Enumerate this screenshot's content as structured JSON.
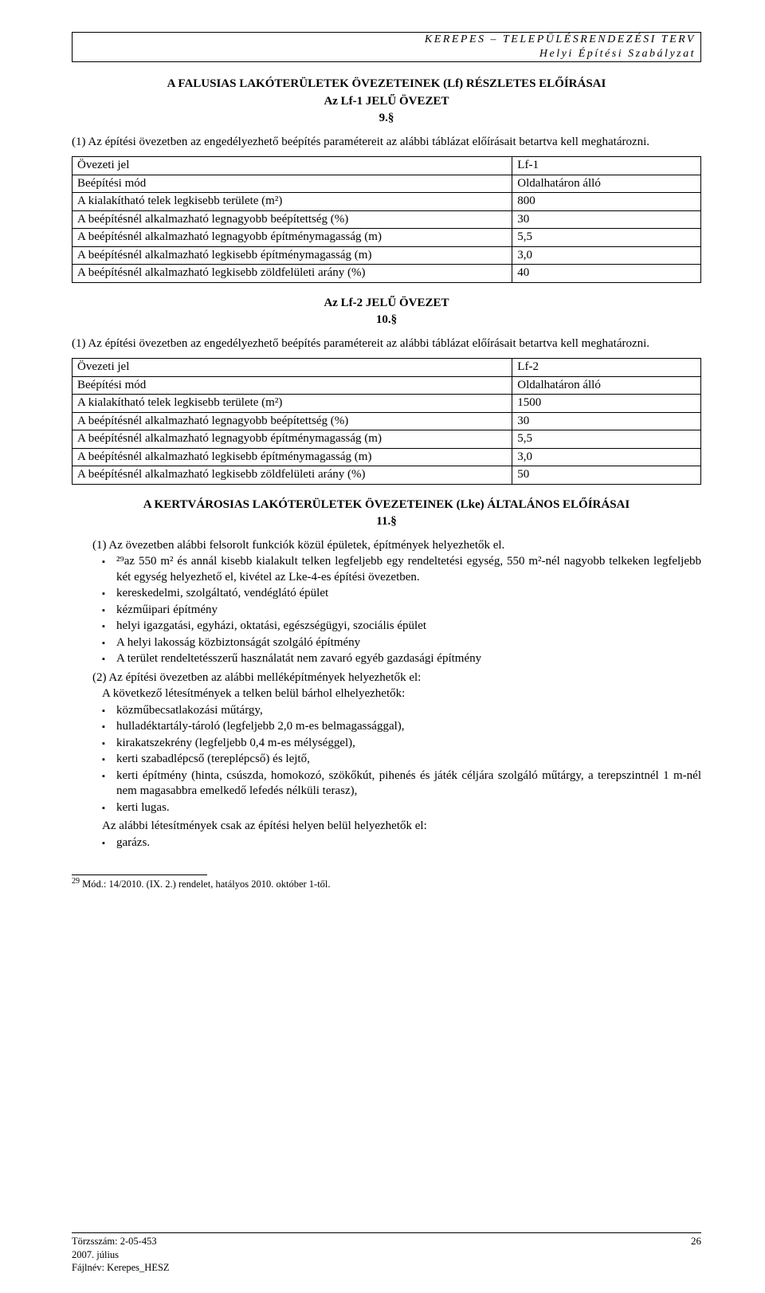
{
  "header": {
    "line1": "KEREPES – TELEPÜLÉSRENDEZÉSI TERV",
    "line2": "Helyi Építési Szabályzat"
  },
  "section9": {
    "title": "A FALUSIAS LAKÓTERÜLETEK ÖVEZETEINEK (Lf) RÉSZLETES ELŐÍRÁSAI",
    "subtitle": "Az Lf-1 JELŰ ÖVEZET",
    "num": "9.§",
    "para1": "(1) Az építési övezetben az engedélyezhető beépítés paramétereit az alábbi táblázat előírásait betartva kell meghatározni.",
    "table": {
      "rows": [
        [
          "Övezeti jel",
          "Lf-1"
        ],
        [
          "Beépítési mód",
          "Oldalhatáron álló"
        ],
        [
          "A kialakítható telek legkisebb területe (m²)",
          "800"
        ],
        [
          "A beépítésnél alkalmazható legnagyobb beépítettség (%)",
          "30"
        ],
        [
          "A beépítésnél alkalmazható legnagyobb építménymagasság (m)",
          "5,5"
        ],
        [
          "A beépítésnél alkalmazható legkisebb építménymagasság (m)",
          "3,0"
        ],
        [
          "A beépítésnél alkalmazható legkisebb zöldfelületi arány (%)",
          "40"
        ]
      ]
    }
  },
  "section10": {
    "subtitle": "Az Lf-2 JELŰ ÖVEZET",
    "num": "10.§",
    "para1": "(1) Az építési övezetben az engedélyezhető beépítés paramétereit az alábbi táblázat előírásait betartva kell meghatározni.",
    "table": {
      "rows": [
        [
          "Övezeti jel",
          "Lf-2"
        ],
        [
          "Beépítési mód",
          "Oldalhatáron álló"
        ],
        [
          "A kialakítható telek legkisebb területe (m²)",
          "1500"
        ],
        [
          "A beépítésnél alkalmazható legnagyobb beépítettség (%)",
          "30"
        ],
        [
          "A beépítésnél alkalmazható legnagyobb építménymagasság (m)",
          "5,5"
        ],
        [
          "A beépítésnél alkalmazható legkisebb építménymagasság (m)",
          "3,0"
        ],
        [
          "A beépítésnél alkalmazható legkisebb zöldfelületi arány (%)",
          "50"
        ]
      ]
    }
  },
  "section11": {
    "title": "A KERTVÁROSIAS LAKÓTERÜLETEK ÖVEZETEINEK (Lke) ÁLTALÁNOS ELŐÍRÁSAI",
    "num": "11.§",
    "p1_lead": "(1)  Az övezetben alábbi felsorolt funkciók közül épületek, építmények helyezhetők el.",
    "p1_items": [
      "²⁹az 550 m² és annál kisebb kialakult telken legfeljebb egy rendeltetési egység, 550 m²-nél nagyobb telkeken legfeljebb két egység helyezhető el, kivétel az Lke-4-es építési övezetben.",
      "kereskedelmi, szolgáltató, vendéglátó épület",
      "kézműipari építmény",
      "helyi igazgatási, egyházi, oktatási, egészségügyi, szociális épület",
      "A helyi lakosság közbiztonságát szolgáló építmény",
      "A terület rendeltetésszerű használatát nem zavaró egyéb gazdasági építmény"
    ],
    "p2_lead": "(2)  Az építési övezetben az alábbi melléképítmények helyezhetők el:",
    "p2_sub": "A következő létesítmények a telken belül bárhol elhelyezhetők:",
    "p2_items": [
      "közműbecsatlakozási műtárgy,",
      "hulladéktartály-tároló (legfeljebb 2,0 m-es belmagassággal),",
      "kirakatszekrény (legfeljebb 0,4 m-es mélységgel),",
      "kerti szabadlépcső (tereplépcső) és lejtő,",
      "kerti építmény (hinta, csúszda, homokozó, szökőkút, pihenés és játék céljára szolgáló műtárgy, a terepszintnél 1 m-nél nem magasabbra emelkedő lefedés nélküli terasz),",
      "kerti lugas."
    ],
    "p2_sub2": "Az alábbi létesítmények csak az építési helyen belül helyezhetők el:",
    "p2_items2": [
      "garázs."
    ]
  },
  "footnote": {
    "marker": "29",
    "text": " Mód.: 14/2010. (IX. 2.) rendelet, hatályos 2010. október 1-től."
  },
  "footer": {
    "l1": "Törzsszám: 2-05-453",
    "l2": "2007. július",
    "l3": "Fájlnév: Kerepes_HESZ",
    "page": "26"
  }
}
